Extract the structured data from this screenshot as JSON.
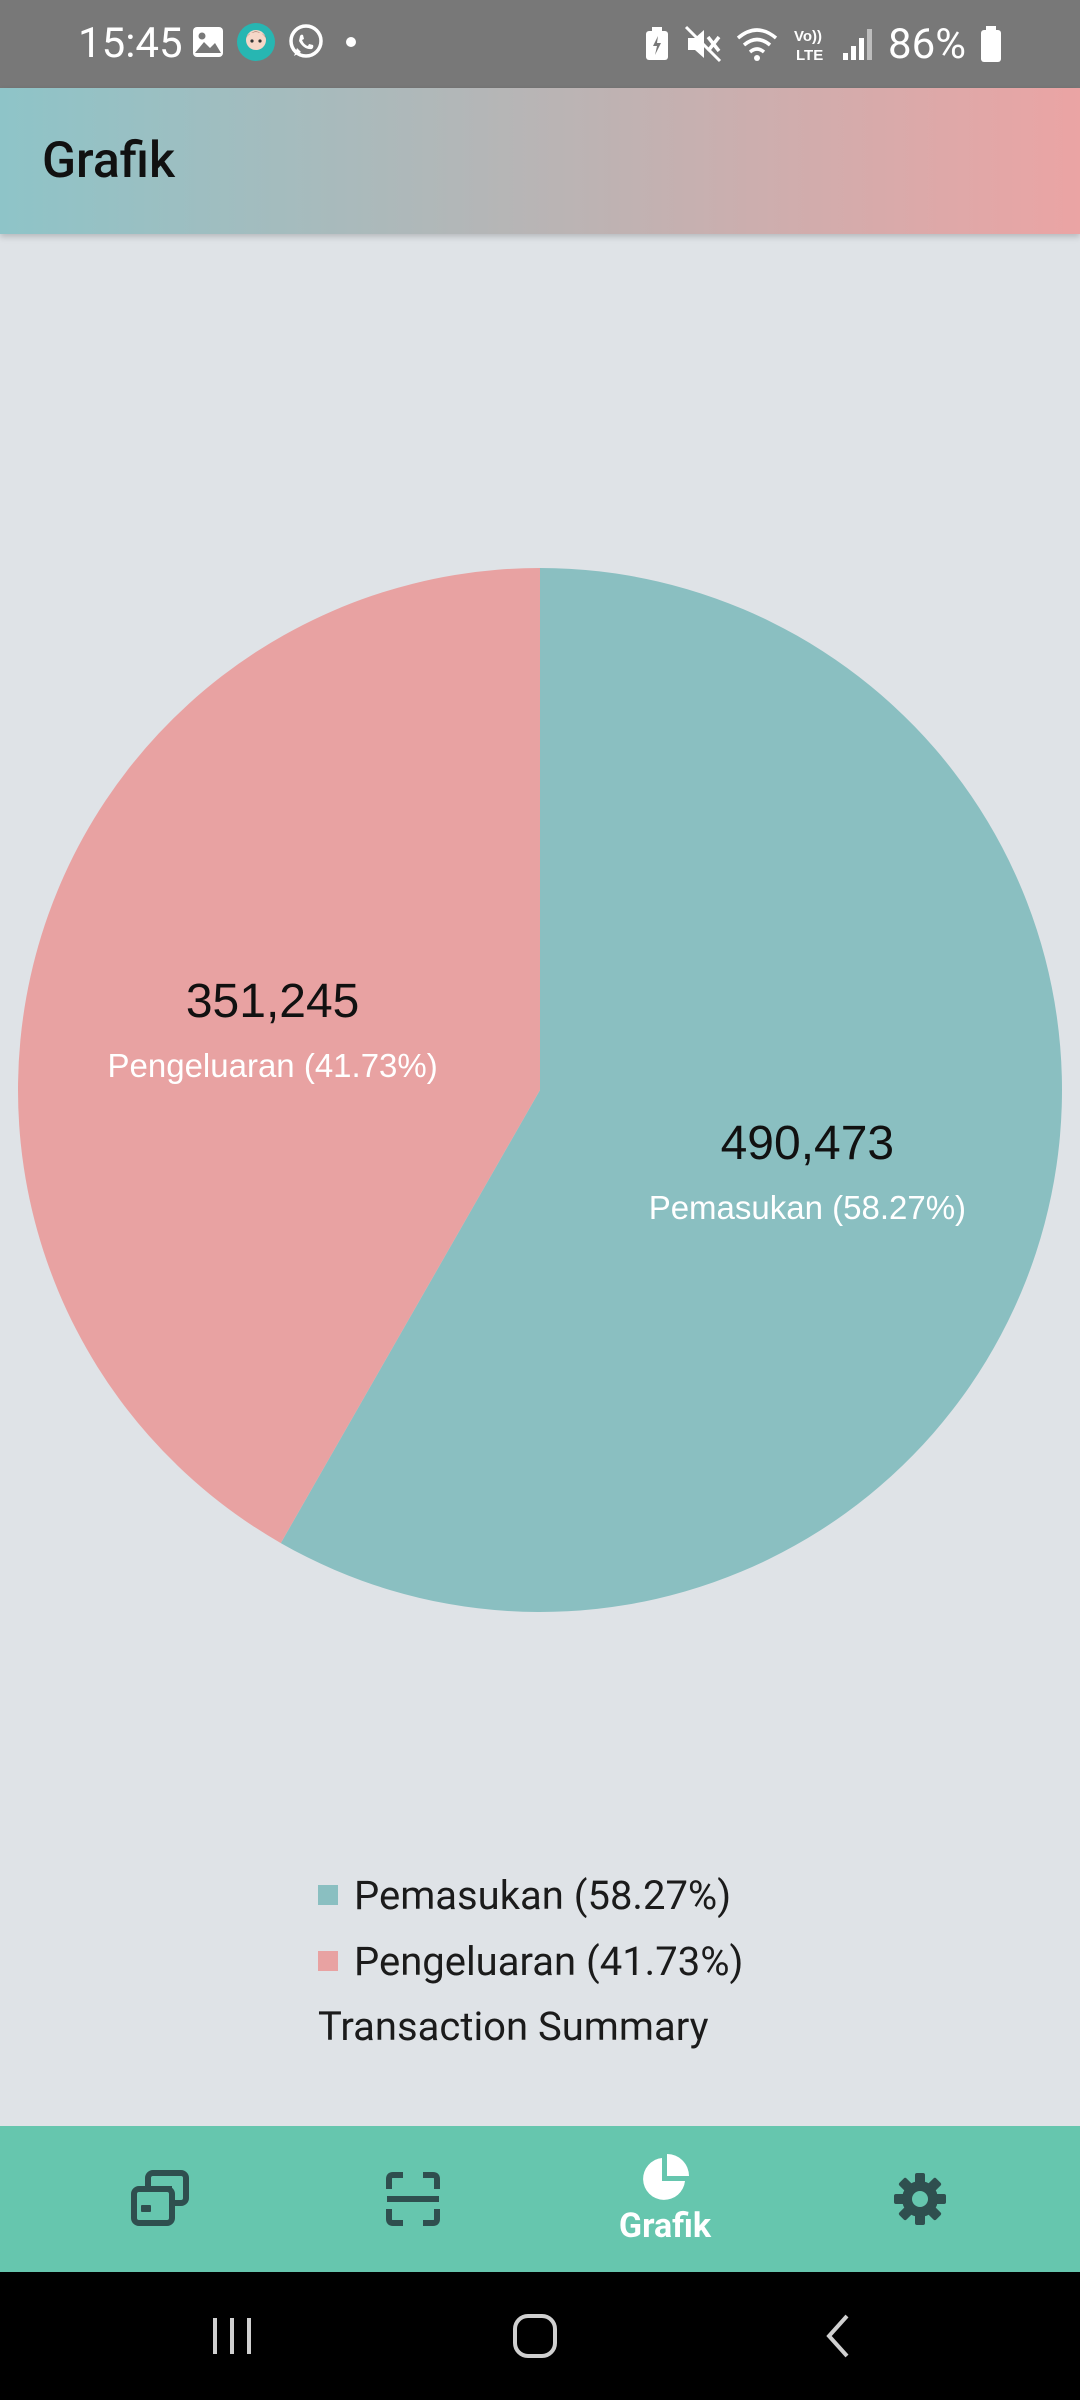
{
  "status_bar": {
    "time": "15:45",
    "battery": "86%",
    "left_icons": [
      "gallery-icon",
      "avatar-app-icon",
      "whatsapp-icon",
      "dot-icon"
    ],
    "right_icons": [
      "battery-saver-icon",
      "mute-icon",
      "wifi-icon",
      "volte-icon",
      "signal-icon",
      "battery-icon"
    ]
  },
  "app_bar": {
    "title": "Grafik"
  },
  "colors": {
    "income": "#8abfc1",
    "expense": "#e8a2a2",
    "nav_background": "#66c6ae",
    "nav_icon": "#2f4f4f"
  },
  "chart_data": {
    "type": "pie",
    "title": "",
    "description": "Transaction Summary",
    "slices": [
      {
        "label": "Pemasukan",
        "value": 490473,
        "value_label": "490,473",
        "percent": 58.27,
        "slice_label": "Pemasukan (58.27%)",
        "color": "#8abfc1"
      },
      {
        "label": "Pengeluaran",
        "value": 351245,
        "value_label": "351,245",
        "percent": 41.73,
        "slice_label": "Pengeluaran (41.73%)",
        "color": "#e8a2a2"
      }
    ],
    "legend_position": "bottom-center"
  },
  "legend": {
    "items": [
      {
        "label": "Pemasukan (58.27%)",
        "color": "#8abfc1"
      },
      {
        "label": "Pengeluaran (41.73%)",
        "color": "#e8a2a2"
      }
    ],
    "description": "Transaction Summary"
  },
  "bottom_nav": {
    "items": [
      {
        "icon": "transactions-icon",
        "label": "",
        "active": false
      },
      {
        "icon": "scan-icon",
        "label": "",
        "active": false
      },
      {
        "icon": "pie-chart-icon",
        "label": "Grafik",
        "active": true
      },
      {
        "icon": "settings-icon",
        "label": "",
        "active": false
      }
    ]
  },
  "system_nav": {
    "buttons": [
      "recents-icon",
      "home-icon",
      "back-icon"
    ]
  }
}
